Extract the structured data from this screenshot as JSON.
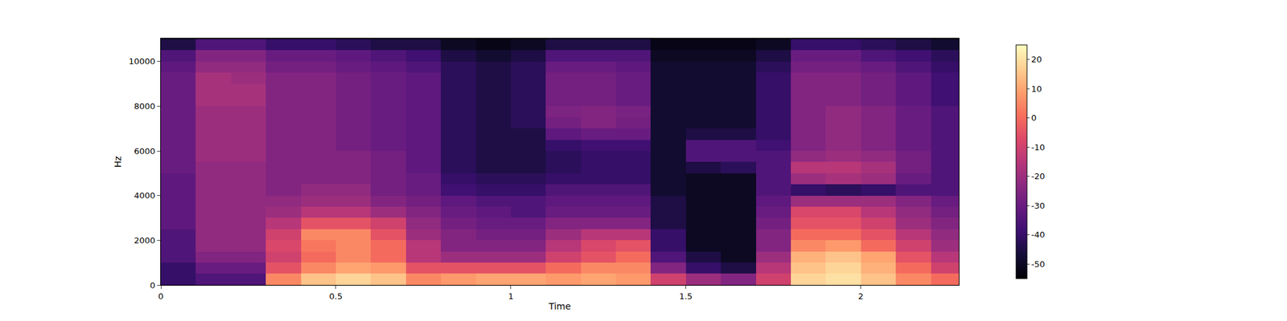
{
  "chart_data": {
    "type": "heatmap",
    "x_label": "Time",
    "y_label": "Hz",
    "xlim": [
      0,
      2.28
    ],
    "xticks": [
      0,
      0.5,
      1,
      1.5,
      2
    ],
    "ylim": [
      0,
      11025
    ],
    "yticks": [
      0,
      2000,
      4000,
      6000,
      8000,
      10000
    ],
    "colorbar_range": [
      -55,
      25
    ],
    "colorbar_ticks": [
      -50,
      -40,
      -30,
      -20,
      -10,
      0,
      10,
      20
    ],
    "x": [
      0.05,
      0.15,
      0.25,
      0.35,
      0.45,
      0.55,
      0.65,
      0.75,
      0.85,
      0.95,
      1.05,
      1.15,
      1.25,
      1.35,
      1.45,
      1.55,
      1.65,
      1.75,
      1.85,
      1.95,
      2.05,
      2.15,
      2.25
    ],
    "y": [
      250,
      750,
      1250,
      1750,
      2250,
      2750,
      3250,
      3750,
      4250,
      4750,
      5250,
      5750,
      6250,
      6750,
      7250,
      7750,
      8250,
      8750,
      9250,
      9750,
      10250,
      10750
    ],
    "cells": [
      [
        -40,
        -35,
        -35,
        5,
        15,
        18,
        15,
        5,
        8,
        10,
        10,
        8,
        10,
        8,
        -10,
        -20,
        -25,
        -10,
        18,
        20,
        15,
        5,
        0
      ],
      [
        -40,
        -30,
        -30,
        -5,
        5,
        10,
        8,
        -5,
        -5,
        -5,
        -5,
        0,
        5,
        5,
        -25,
        -40,
        -45,
        -15,
        15,
        18,
        12,
        0,
        -10
      ],
      [
        -35,
        -25,
        -25,
        -10,
        0,
        5,
        0,
        -15,
        -20,
        -20,
        -20,
        -10,
        -5,
        0,
        -35,
        -45,
        -50,
        -20,
        12,
        15,
        10,
        -5,
        -15
      ],
      [
        -35,
        -22,
        -22,
        -8,
        2,
        5,
        0,
        -15,
        -25,
        -25,
        -25,
        -15,
        -8,
        -5,
        -40,
        -50,
        -50,
        -25,
        5,
        8,
        0,
        -10,
        -20
      ],
      [
        -35,
        -22,
        -22,
        -10,
        5,
        5,
        -5,
        -20,
        -25,
        -28,
        -28,
        -20,
        -15,
        -15,
        -40,
        -50,
        -50,
        -25,
        0,
        0,
        -5,
        -15,
        -22
      ],
      [
        -32,
        -22,
        -22,
        -15,
        -5,
        -5,
        -10,
        -22,
        -28,
        -30,
        -30,
        -25,
        -25,
        -25,
        -45,
        -50,
        -50,
        -28,
        -5,
        -5,
        -10,
        -20,
        -25
      ],
      [
        -32,
        -22,
        -22,
        -20,
        -15,
        -15,
        -20,
        -25,
        -30,
        -32,
        -35,
        -30,
        -30,
        -30,
        -45,
        -50,
        -50,
        -30,
        -8,
        -8,
        -15,
        -22,
        -28
      ],
      [
        -32,
        -22,
        -22,
        -22,
        -20,
        -20,
        -25,
        -28,
        -32,
        -35,
        -35,
        -32,
        -32,
        -32,
        -45,
        -50,
        -50,
        -32,
        -20,
        -20,
        -20,
        -25,
        -30
      ],
      [
        -32,
        -22,
        -22,
        -25,
        -22,
        -22,
        -28,
        -30,
        -38,
        -40,
        -40,
        -35,
        -35,
        -35,
        -48,
        -50,
        -50,
        -35,
        -40,
        -42,
        -40,
        -35,
        -35
      ],
      [
        -32,
        -22,
        -22,
        -25,
        -25,
        -25,
        -28,
        -30,
        -40,
        -42,
        -42,
        -40,
        -40,
        -40,
        -48,
        -50,
        -50,
        -35,
        -20,
        -18,
        -20,
        -30,
        -35
      ],
      [
        -30,
        -22,
        -22,
        -25,
        -25,
        -25,
        -28,
        -32,
        -42,
        -45,
        -45,
        -42,
        -40,
        -40,
        -48,
        -45,
        -42,
        -35,
        -15,
        -15,
        -18,
        -28,
        -35
      ],
      [
        -30,
        -20,
        -20,
        -25,
        -25,
        -25,
        -28,
        -32,
        -42,
        -45,
        -45,
        -42,
        -40,
        -40,
        -48,
        -35,
        -35,
        -35,
        -22,
        -20,
        -22,
        -28,
        -35
      ],
      [
        -30,
        -20,
        -20,
        -25,
        -25,
        -28,
        -30,
        -32,
        -42,
        -45,
        -45,
        -40,
        -38,
        -38,
        -48,
        -35,
        -35,
        -38,
        -25,
        -22,
        -25,
        -30,
        -35
      ],
      [
        -30,
        -20,
        -20,
        -25,
        -25,
        -28,
        -30,
        -32,
        -42,
        -45,
        -45,
        -32,
        -30,
        -30,
        -48,
        -45,
        -45,
        -40,
        -25,
        -22,
        -25,
        -30,
        -35
      ],
      [
        -30,
        -20,
        -20,
        -25,
        -25,
        -28,
        -30,
        -32,
        -42,
        -45,
        -42,
        -28,
        -25,
        -28,
        -48,
        -48,
        -48,
        -40,
        -25,
        -22,
        -25,
        -30,
        -35
      ],
      [
        -30,
        -20,
        -20,
        -25,
        -25,
        -28,
        -30,
        -32,
        -42,
        -45,
        -42,
        -26,
        -25,
        -27,
        -48,
        -48,
        -48,
        -40,
        -25,
        -22,
        -25,
        -30,
        -35
      ],
      [
        -30,
        -18,
        -18,
        -25,
        -25,
        -28,
        -30,
        -32,
        -42,
        -45,
        -42,
        -28,
        -28,
        -30,
        -48,
        -48,
        -48,
        -40,
        -25,
        -25,
        -28,
        -32,
        -38
      ],
      [
        -30,
        -18,
        -18,
        -25,
        -25,
        -28,
        -30,
        -32,
        -42,
        -45,
        -42,
        -28,
        -28,
        -30,
        -48,
        -48,
        -48,
        -40,
        -25,
        -25,
        -28,
        -32,
        -38
      ],
      [
        -30,
        -18,
        -20,
        -25,
        -25,
        -28,
        -30,
        -32,
        -42,
        -45,
        -42,
        -28,
        -28,
        -30,
        -48,
        -48,
        -48,
        -40,
        -25,
        -25,
        -28,
        -32,
        -38
      ],
      [
        -32,
        -22,
        -22,
        -28,
        -28,
        -30,
        -32,
        -35,
        -42,
        -45,
        -42,
        -30,
        -30,
        -32,
        -48,
        -48,
        -48,
        -42,
        -28,
        -28,
        -30,
        -35,
        -40
      ],
      [
        -35,
        -25,
        -25,
        -30,
        -30,
        -32,
        -35,
        -38,
        -45,
        -48,
        -45,
        -35,
        -35,
        -35,
        -50,
        -50,
        -50,
        -45,
        -30,
        -30,
        -35,
        -38,
        -42
      ],
      [
        -45,
        -35,
        -35,
        -40,
        -40,
        -42,
        -45,
        -45,
        -50,
        -52,
        -50,
        -45,
        -45,
        -45,
        -52,
        -52,
        -52,
        -50,
        -40,
        -40,
        -42,
        -45,
        -48
      ]
    ]
  }
}
